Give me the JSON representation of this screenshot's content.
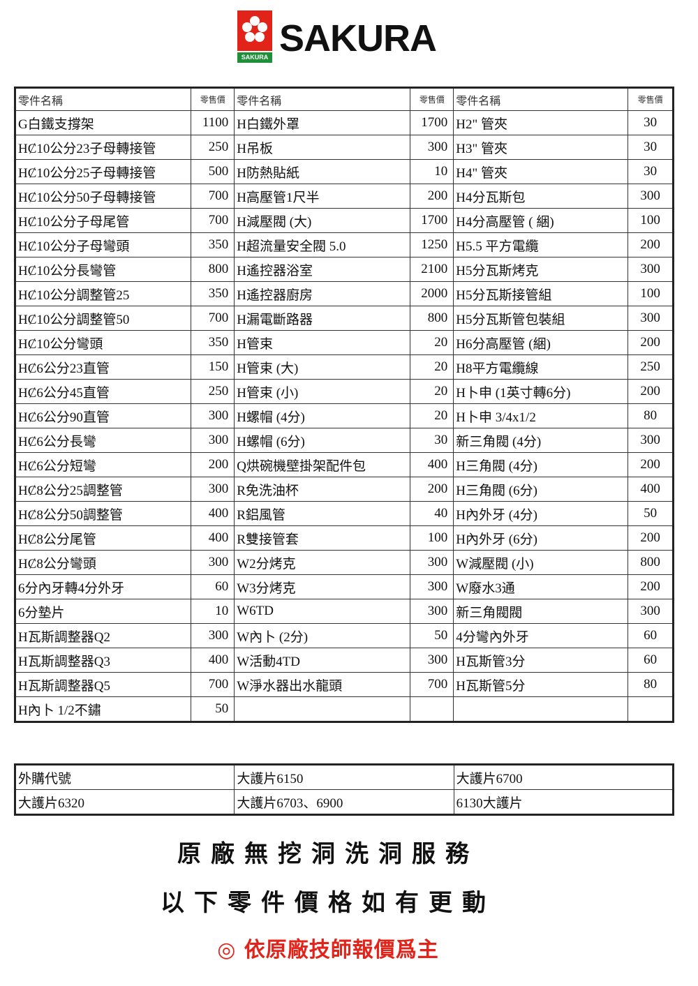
{
  "logo": {
    "brand": "SAKURA",
    "sub": "SAKURA",
    "color": "#e2231a"
  },
  "parts_table": {
    "headers": [
      "零件名稱",
      "零售價",
      "零件名稱",
      "零售價",
      "零件名稱",
      "零售價"
    ],
    "rows": [
      [
        "G白鐵支撐架",
        "1100",
        "H白鐵外罩",
        "1700",
        "H2\" 管夾",
        "30"
      ],
      [
        "HȻ10公分23子母轉接管",
        "250",
        "H吊板",
        "300",
        "H3\" 管夾",
        "30"
      ],
      [
        "HȻ10公分25子母轉接管",
        "500",
        "H防熱貼紙",
        "10",
        "H4\" 管夾",
        "30"
      ],
      [
        "HȻ10公分50子母轉接管",
        "700",
        "H高壓管1尺半",
        "200",
        "H4分瓦斯包",
        "300"
      ],
      [
        "HȻ10公分子母尾管",
        "700",
        "H減壓閥 (大)",
        "1700",
        "H4分高壓管 ( 綑)",
        "100"
      ],
      [
        "HȻ10公分子母彎頭",
        "350",
        "H超流量安全閥 5.0",
        "1250",
        "H5.5 平方電纜",
        "200"
      ],
      [
        "HȻ10公分長彎管",
        "800",
        "H遙控器浴室",
        "2100",
        "H5分瓦斯烤克",
        "300"
      ],
      [
        "HȻ10公分調整管25",
        "350",
        "H遙控器廚房",
        "2000",
        "H5分瓦斯接管組",
        "100"
      ],
      [
        "HȻ10公分調整管50",
        "700",
        "H漏電斷路器",
        "800",
        "H5分瓦斯管包裝組",
        "300"
      ],
      [
        "HȻ10公分彎頭",
        "350",
        "H管束",
        "20",
        "H6分高壓管 (綑)",
        "200"
      ],
      [
        "HȻ6公分23直管",
        "150",
        "H管束 (大)",
        "20",
        "H8平方電纜線",
        "250"
      ],
      [
        "HȻ6公分45直管",
        "250",
        "H管束 (小)",
        "20",
        "H卜申 (1英寸轉6分)",
        "200"
      ],
      [
        "HȻ6公分90直管",
        "300",
        "H螺帽 (4分)",
        "20",
        "H卜申 3/4x1/2",
        "80"
      ],
      [
        "HȻ6公分長彎",
        "300",
        "H螺帽 (6分)",
        "30",
        "新三角閥 (4分)",
        "300"
      ],
      [
        "HȻ6公分短彎",
        "200",
        "Q烘碗機壁掛架配件包",
        "400",
        "H三角閥 (4分)",
        "200"
      ],
      [
        "HȻ8公分25調整管",
        "300",
        "R免洗油杯",
        "200",
        "H三角閥 (6分)",
        "400"
      ],
      [
        "HȻ8公分50調整管",
        "400",
        "R鋁風管",
        "40",
        "H內外牙 (4分)",
        "50"
      ],
      [
        "HȻ8公分尾管",
        "400",
        "R雙接管套",
        "100",
        "H內外牙 (6分)",
        "200"
      ],
      [
        "HȻ8公分彎頭",
        "300",
        "W2分烤克",
        "300",
        "W減壓閥 (小)",
        "800"
      ],
      [
        "6分內牙轉4分外牙",
        "60",
        "W3分烤克",
        "300",
        "W廢水3通",
        "200"
      ],
      [
        "6分墊片",
        "10",
        "W6TD",
        "300",
        "新三角閥閥",
        "300"
      ],
      [
        "H瓦斯調整器Q2",
        "300",
        "W內卜 (2分)",
        "50",
        "4分彎內外牙",
        "60"
      ],
      [
        "H瓦斯調整器Q3",
        "400",
        "W活動4TD",
        "300",
        "H瓦斯管3分",
        "60"
      ],
      [
        "H瓦斯調整器Q5",
        "700",
        "W淨水器出水龍頭",
        "700",
        "H瓦斯管5分",
        "80"
      ],
      [
        "H內卜 1/2不鏽",
        "50",
        "",
        "",
        "",
        ""
      ]
    ]
  },
  "extra_table": {
    "rows": [
      [
        "外購代號",
        "大護片6150",
        "大護片6700"
      ],
      [
        "大護片6320",
        "大護片6703、6900",
        "6130大護片"
      ]
    ]
  },
  "notes": {
    "line1": "原廠無挖洞洗洞服務",
    "line2": "以下零件價格如有更動",
    "line3": "◎ 依原廠技師報價爲主"
  }
}
